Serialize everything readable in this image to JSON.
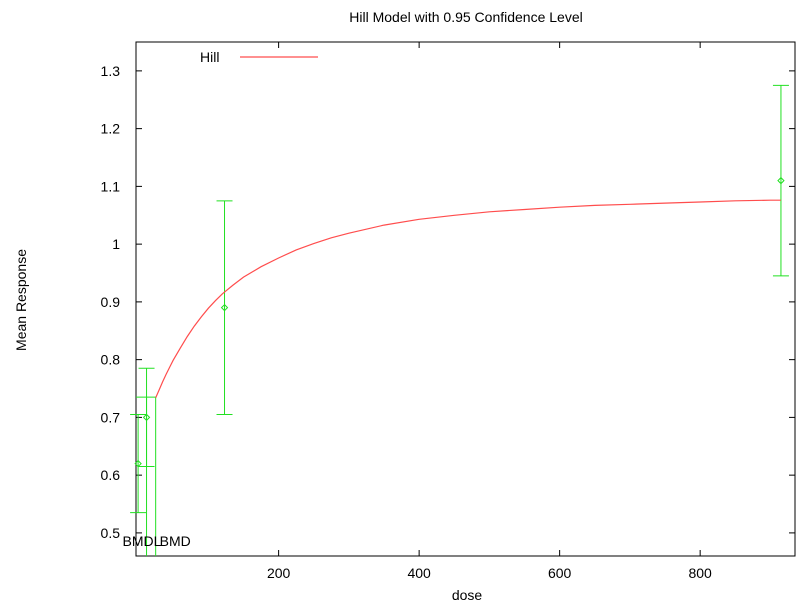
{
  "chart_data": {
    "type": "line",
    "title": "Hill Model with 0.95 Confidence Level",
    "xlabel": "dose",
    "ylabel": "Mean Response",
    "xlim": [
      -3,
      935
    ],
    "ylim": [
      0.46,
      1.35
    ],
    "x_ticks": [
      200,
      400,
      600,
      800
    ],
    "y_ticks": [
      0.5,
      0.6,
      0.7,
      0.8,
      0.9,
      1,
      1.1,
      1.2,
      1.3
    ],
    "x_tick_labels": [
      "200",
      "400",
      "600",
      "800"
    ],
    "y_tick_labels": [
      "0.5",
      "0.6",
      "0.7",
      "0.8",
      "0.9",
      "1",
      "1.1",
      "1.2",
      "1.3"
    ],
    "legend": {
      "label": "Hill",
      "placement": "top-left",
      "color": "#ff4d4d"
    },
    "colors": {
      "model": "#ff4d4d",
      "data": "#22e022",
      "bmd": "#22e022"
    },
    "model_curve": {
      "name": "Hill",
      "x": [
        25,
        30,
        35,
        40,
        45,
        50,
        60,
        70,
        80,
        90,
        100,
        110,
        120,
        135,
        150,
        175,
        200,
        225,
        250,
        275,
        300,
        350,
        400,
        450,
        500,
        550,
        600,
        650,
        700,
        750,
        800,
        850,
        900,
        915
      ],
      "y": [
        0.734,
        0.748,
        0.762,
        0.775,
        0.787,
        0.799,
        0.82,
        0.84,
        0.858,
        0.874,
        0.889,
        0.902,
        0.914,
        0.929,
        0.943,
        0.961,
        0.976,
        0.99,
        1.001,
        1.011,
        1.019,
        1.033,
        1.043,
        1.05,
        1.056,
        1.06,
        1.064,
        1.067,
        1.069,
        1.071,
        1.073,
        1.075,
        1.076,
        1.076
      ]
    },
    "data_points": [
      {
        "x": 0,
        "y": 0.62,
        "lower": 0.535,
        "upper": 0.705
      },
      {
        "x": 12,
        "y": 0.7,
        "lower": 0.615,
        "upper": 0.785
      },
      {
        "x": 123,
        "y": 0.89,
        "lower": 0.705,
        "upper": 1.075
      },
      {
        "x": 915,
        "y": 1.11,
        "lower": 0.945,
        "upper": 1.275
      }
    ],
    "bmd": {
      "level": 0.735,
      "bmdl": 12,
      "bmd": 25,
      "bmdl_label": "BMDL",
      "bmd_label": "BMD"
    }
  }
}
